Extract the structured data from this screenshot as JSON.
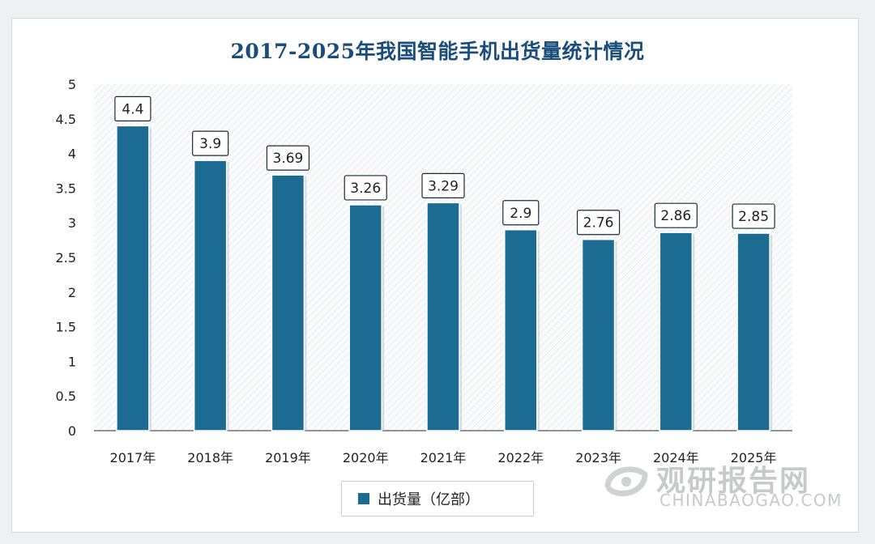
{
  "chart_data": {
    "type": "bar",
    "title": "2017-2025年我国智能手机出货量统计情况",
    "categories": [
      "2017年",
      "2018年",
      "2019年",
      "2020年",
      "2021年",
      "2022年",
      "2023年",
      "2024年",
      "2025年"
    ],
    "series": [
      {
        "name": "出货量（亿部）",
        "values": [
          4.4,
          3.9,
          3.69,
          3.26,
          3.29,
          2.9,
          2.76,
          2.86,
          2.85
        ]
      }
    ],
    "data_labels": [
      "4.4",
      "3.9",
      "3.69",
      "3.26",
      "3.29",
      "2.9",
      "2.76",
      "2.86",
      "2.85"
    ],
    "y_ticks": [
      "0",
      "0.5",
      "1",
      "1.5",
      "2",
      "2.5",
      "3",
      "3.5",
      "4",
      "4.5",
      "5"
    ],
    "ylim": [
      0,
      5
    ],
    "xlabel": "",
    "ylabel": "",
    "grid": false,
    "legend_position": "bottom",
    "colors": {
      "bar": "#1b6b93",
      "title": "#1a4d7a",
      "axis": "#555555"
    }
  },
  "watermark": {
    "brand": "观研报告网",
    "url": "CHINABAOGAO.COM"
  }
}
